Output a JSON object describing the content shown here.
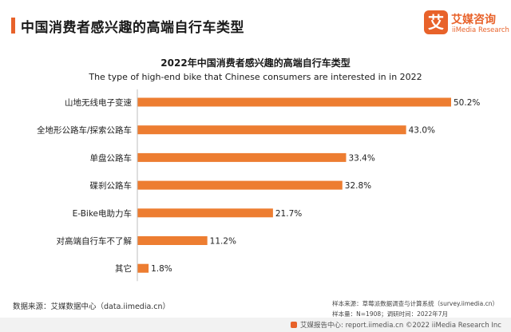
{
  "header": {
    "title": "中国消费者感兴趣的高端自行车类型",
    "logo_mark": "艾",
    "logo_cn": "艾媒咨询",
    "logo_en": "iiMedia Research"
  },
  "chart_data": {
    "type": "bar",
    "orientation": "horizontal",
    "title": "2022年中国消费者感兴趣的高端自行车类型",
    "subtitle": "The type of high-end bike that Chinese consumers are interested in in 2022",
    "categories": [
      "山地无线电子变速",
      "全地形公路车/探索公路车",
      "单盘公路车",
      "碟刹公路车",
      "E-Bike电助力车",
      "对高端自行车不了解",
      "其它"
    ],
    "values": [
      50.2,
      43.0,
      33.4,
      32.8,
      21.7,
      11.2,
      1.8
    ],
    "value_labels": [
      "50.2%",
      "43.0%",
      "33.4%",
      "32.8%",
      "21.7%",
      "11.2%",
      "1.8%"
    ],
    "unit": "%",
    "xlim": [
      0,
      50.2
    ],
    "color": "#ed7d31",
    "grid": false,
    "legend": "none"
  },
  "footer": {
    "source": "数据来源：艾媒数据中心（data.iimedia.cn）",
    "note_line1": "样本来源：草莓派数据调查与计算系统（survey.iimedia.cn）",
    "note_line2": "样本量：N=1908；调研时间：2022年7月",
    "copyright": "艾媒报告中心: report.iimedia.cn ©2022  iiMedia Research Inc"
  }
}
